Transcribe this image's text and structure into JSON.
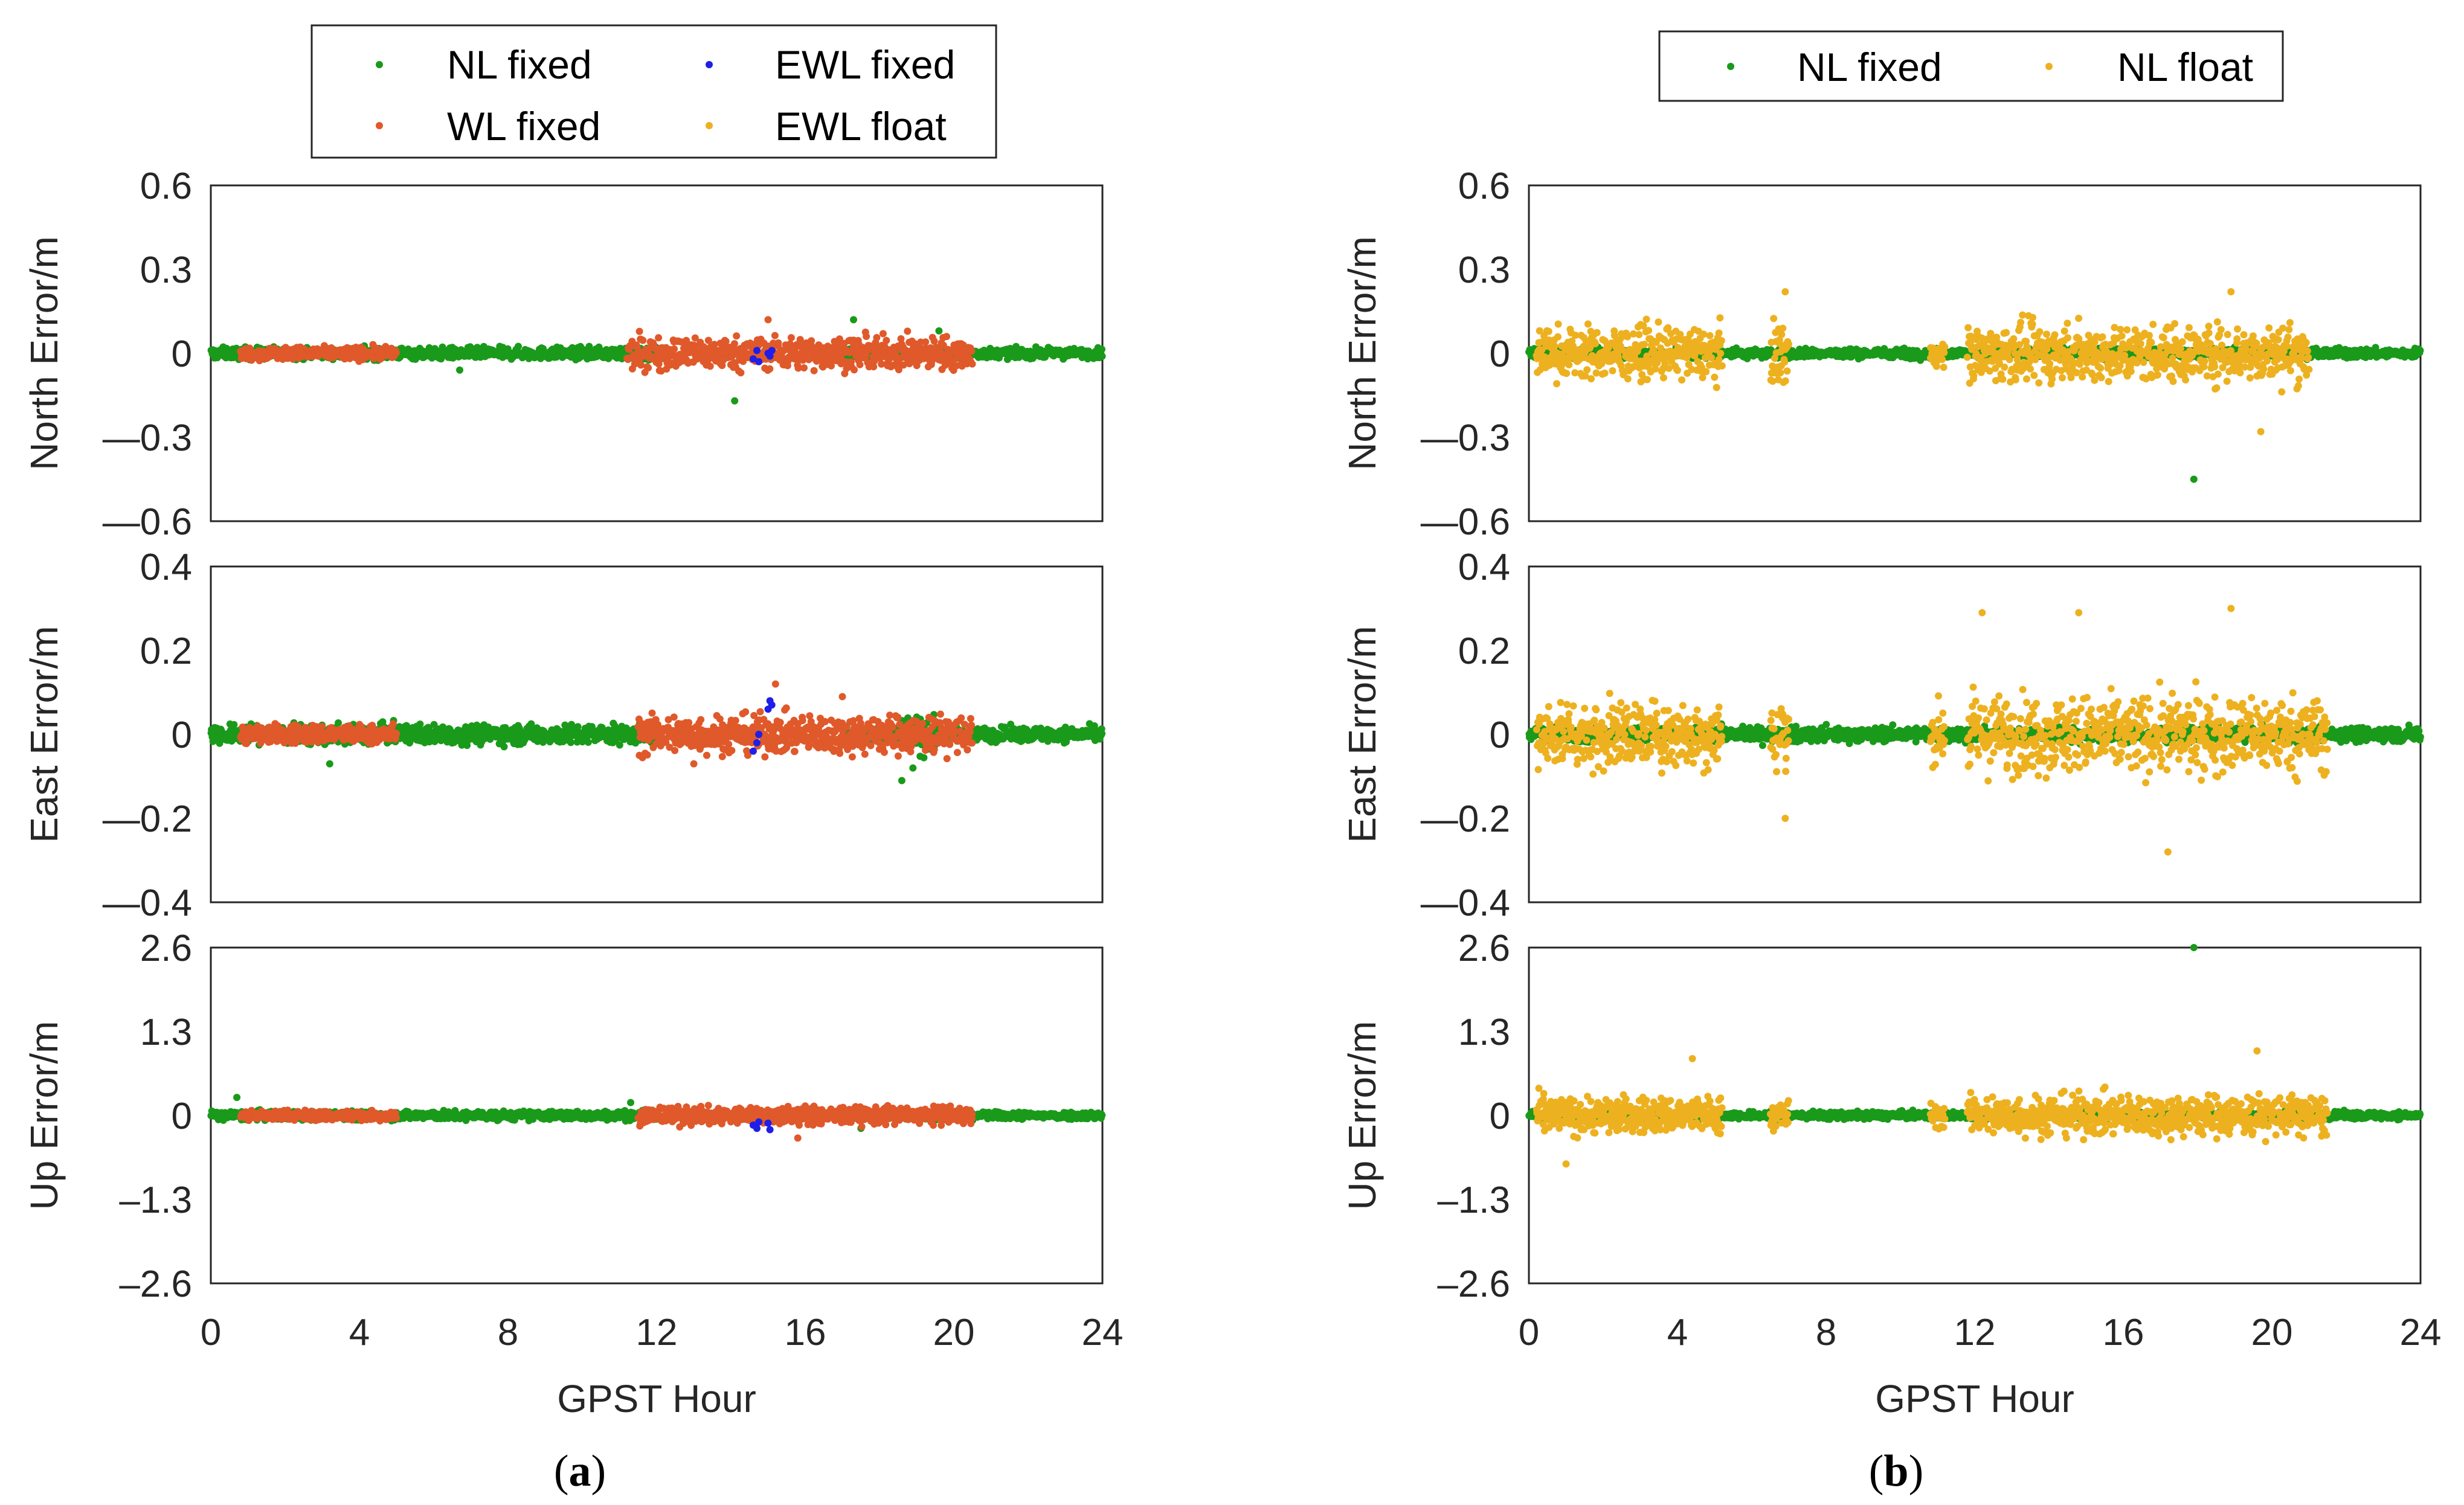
{
  "colors": {
    "nl_fixed": "#1a9a1a",
    "wl_fixed": "#e0592a",
    "ewl_fixed": "#1f1fe8",
    "float": "#edb120",
    "axis": "#262626",
    "frame": "#000000"
  },
  "chart_data": [
    {
      "id": "a",
      "type": "scatter",
      "caption": {
        "open": "(",
        "letter": "a",
        "close": ")"
      },
      "legend": {
        "entries": [
          {
            "label": "NL fixed",
            "color_key": "nl_fixed"
          },
          {
            "label": "EWL fixed",
            "color_key": "ewl_fixed"
          },
          {
            "label": "WL fixed",
            "color_key": "wl_fixed"
          },
          {
            "label": "EWL float",
            "color_key": "float"
          }
        ]
      },
      "xlabel": "GPST Hour",
      "xlim": [
        0,
        24
      ],
      "xticks": [
        "0",
        "4",
        "8",
        "12",
        "16",
        "20",
        "24"
      ],
      "subplots": [
        {
          "ylabel": "North Error/m",
          "ylim": [
            -0.6,
            0.6
          ],
          "yticks": [
            "0.6",
            "0.3",
            "0",
            "—0.3",
            "—0.6"
          ],
          "series": [
            {
              "name": "NL fixed",
              "color_key": "nl_fixed",
              "segments": [
                [
                  0,
                  12,
                  0.018
                ],
                [
                  17,
                  24,
                  0.015
                ]
              ],
              "points": [
                [
                  14.1,
                  -0.17
                ],
                [
                  17.3,
                  0.12
                ],
                [
                  19.6,
                  0.08
                ],
                [
                  6.7,
                  -0.06
                ]
              ]
            },
            {
              "name": "WL fixed",
              "color_key": "wl_fixed",
              "segments": [
                [
                  0.8,
                  5.0,
                  0.02
                ],
                [
                  11.2,
                  20.5,
                  0.05
                ]
              ],
              "points": [
                [
                  15.0,
                  0.12
                ]
              ]
            },
            {
              "name": "EWL fixed",
              "color_key": "ewl_fixed",
              "segments": [],
              "points": [
                [
                  14.6,
                  -0.02
                ],
                [
                  14.7,
                  0.01
                ],
                [
                  14.75,
                  -0.03
                ],
                [
                  15.0,
                  0.0
                ],
                [
                  15.05,
                  -0.01
                ],
                [
                  15.1,
                  0.01
                ]
              ]
            },
            {
              "name": "EWL float",
              "color_key": "float",
              "segments": [],
              "points": []
            }
          ]
        },
        {
          "ylabel": "East Error/m",
          "ylim": [
            -0.4,
            0.4
          ],
          "yticks": [
            "0.4",
            "0.2",
            "0",
            "—0.2",
            "—0.4"
          ],
          "series": [
            {
              "name": "NL fixed",
              "color_key": "nl_fixed",
              "segments": [
                [
                  0,
                  12,
                  0.02
                ],
                [
                  17,
                  24,
                  0.015
                ],
                [
                  18.5,
                  19.5,
                  0.04
                ]
              ],
              "points": [
                [
                  3.2,
                  -0.07
                ],
                [
                  18.6,
                  -0.11
                ],
                [
                  18.9,
                  -0.08
                ]
              ]
            },
            {
              "name": "WL fixed",
              "color_key": "wl_fixed",
              "segments": [
                [
                  0.8,
                  5.0,
                  0.02
                ],
                [
                  11.5,
                  20.5,
                  0.04
                ]
              ],
              "points": [
                [
                  15.2,
                  0.12
                ],
                [
                  17.0,
                  0.09
                ],
                [
                  13.0,
                  -0.07
                ]
              ]
            },
            {
              "name": "EWL fixed",
              "color_key": "ewl_fixed",
              "segments": [],
              "points": [
                [
                  14.6,
                  -0.04
                ],
                [
                  14.7,
                  -0.02
                ],
                [
                  14.75,
                  0.0
                ],
                [
                  15.0,
                  0.06
                ],
                [
                  15.05,
                  0.08
                ],
                [
                  15.1,
                  0.07
                ]
              ]
            },
            {
              "name": "EWL float",
              "color_key": "float",
              "segments": [],
              "points": []
            }
          ]
        },
        {
          "ylabel": "Up Error/m",
          "ylim": [
            -2.6,
            2.6
          ],
          "yticks": [
            "2.6",
            "1.3",
            "0",
            "–1.3",
            "–2.6"
          ],
          "series": [
            {
              "name": "NL fixed",
              "color_key": "nl_fixed",
              "segments": [
                [
                  0,
                  12,
                  0.06
                ],
                [
                  17,
                  24,
                  0.05
                ]
              ],
              "points": [
                [
                  0.7,
                  0.28
                ],
                [
                  11.3,
                  0.2
                ],
                [
                  17.5,
                  -0.2
                ]
              ]
            },
            {
              "name": "WL fixed",
              "color_key": "wl_fixed",
              "segments": [
                [
                  0.8,
                  5.0,
                  0.07
                ],
                [
                  11.5,
                  20.5,
                  0.12
                ]
              ],
              "points": [
                [
                  15.8,
                  -0.35
                ]
              ]
            },
            {
              "name": "EWL fixed",
              "color_key": "ewl_fixed",
              "segments": [],
              "points": [
                [
                  14.6,
                  -0.15
                ],
                [
                  14.7,
                  -0.2
                ],
                [
                  14.75,
                  -0.1
                ],
                [
                  15.0,
                  -0.12
                ],
                [
                  15.05,
                  -0.22
                ]
              ]
            },
            {
              "name": "EWL float",
              "color_key": "float",
              "segments": [],
              "points": []
            }
          ]
        }
      ]
    },
    {
      "id": "b",
      "type": "scatter",
      "caption": {
        "open": "(",
        "letter": "b",
        "close": ")"
      },
      "legend": {
        "entries": [
          {
            "label": "NL fixed",
            "color_key": "nl_fixed"
          },
          {
            "label": "NL float",
            "color_key": "float"
          }
        ]
      },
      "xlabel": "GPST Hour",
      "xlim": [
        0,
        24
      ],
      "xticks": [
        "0",
        "4",
        "8",
        "12",
        "16",
        "20",
        "24"
      ],
      "subplots": [
        {
          "ylabel": "North Error/m",
          "ylim": [
            -0.6,
            0.6
          ],
          "yticks": [
            "0.6",
            "0.3",
            "0",
            "—0.3",
            "—0.6"
          ],
          "series": [
            {
              "name": "NL fixed",
              "color_key": "nl_fixed",
              "segments": [
                [
                  0,
                  24,
                  0.015
                ]
              ],
              "points": [
                [
                  17.9,
                  -0.45
                ]
              ]
            },
            {
              "name": "NL float",
              "color_key": "float",
              "segments": [
                [
                  0.2,
                  5.2,
                  0.08
                ],
                [
                  6.5,
                  7.0,
                  0.1
                ],
                [
                  10.8,
                  11.2,
                  0.04
                ],
                [
                  11.8,
                  21.0,
                  0.09
                ]
              ],
              "points": [
                [
                  6.9,
                  0.22
                ],
                [
                  18.9,
                  0.22
                ],
                [
                  19.7,
                  -0.28
                ]
              ]
            }
          ]
        },
        {
          "ylabel": "East Error/m",
          "ylim": [
            -0.4,
            0.4
          ],
          "yticks": [
            "0.4",
            "0.2",
            "0",
            "—0.2",
            "—0.4"
          ],
          "series": [
            {
              "name": "NL fixed",
              "color_key": "nl_fixed",
              "segments": [
                [
                  0,
                  24,
                  0.015
                ]
              ],
              "points": []
            },
            {
              "name": "NL float",
              "color_key": "float",
              "segments": [
                [
                  0.2,
                  5.2,
                  0.07
                ],
                [
                  6.5,
                  7.0,
                  0.08
                ],
                [
                  10.8,
                  11.2,
                  0.06
                ],
                [
                  11.8,
                  21.5,
                  0.08
                ]
              ],
              "points": [
                [
                  17.2,
                  -0.28
                ],
                [
                  18.9,
                  0.3
                ],
                [
                  14.8,
                  0.29
                ],
                [
                  6.9,
                  -0.2
                ],
                [
                  12.2,
                  0.29
                ]
              ]
            }
          ]
        },
        {
          "ylabel": "Up Error/m",
          "ylim": [
            -2.6,
            2.6
          ],
          "yticks": [
            "2.6",
            "1.3",
            "0",
            "–1.3",
            "–2.6"
          ],
          "series": [
            {
              "name": "NL fixed",
              "color_key": "nl_fixed",
              "segments": [
                [
                  0,
                  24,
                  0.05
                ]
              ],
              "points": [
                [
                  17.9,
                  2.6
                ]
              ]
            },
            {
              "name": "NL float",
              "color_key": "float",
              "segments": [
                [
                  0.2,
                  5.2,
                  0.25
                ],
                [
                  6.5,
                  7.0,
                  0.25
                ],
                [
                  10.8,
                  11.2,
                  0.15
                ],
                [
                  11.8,
                  21.5,
                  0.28
                ]
              ],
              "points": [
                [
                  4.4,
                  0.88
                ],
                [
                  19.6,
                  1.0
                ],
                [
                  1.0,
                  -0.75
                ]
              ]
            }
          ]
        }
      ]
    }
  ]
}
